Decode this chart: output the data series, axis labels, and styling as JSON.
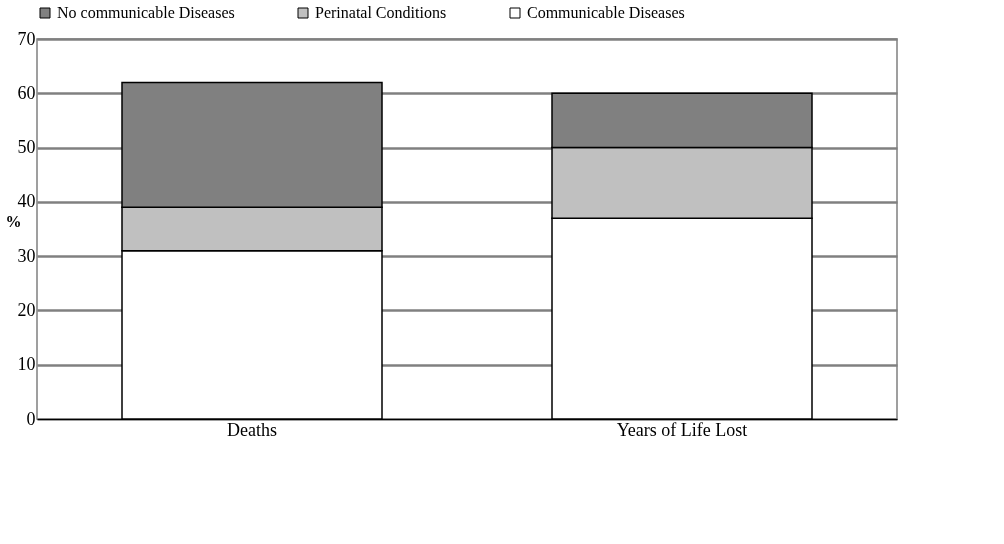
{
  "chart_data": {
    "type": "bar",
    "stacked": true,
    "ylabel": "%",
    "categories": [
      "Deaths",
      "Years of Life Lost"
    ],
    "series": [
      {
        "name": "Communicable Diseases",
        "color": "#ffffff",
        "values": [
          31,
          37
        ]
      },
      {
        "name": "Perinatal Conditions",
        "color": "#c0c0c0",
        "values": [
          8,
          13
        ]
      },
      {
        "name": "No communicable Diseases",
        "color": "#808080",
        "values": [
          23,
          10
        ]
      }
    ],
    "ylim": [
      0,
      70
    ],
    "yticks": [
      0,
      10,
      20,
      30,
      40,
      50,
      60,
      70
    ],
    "grid": "y",
    "legend": "top"
  }
}
